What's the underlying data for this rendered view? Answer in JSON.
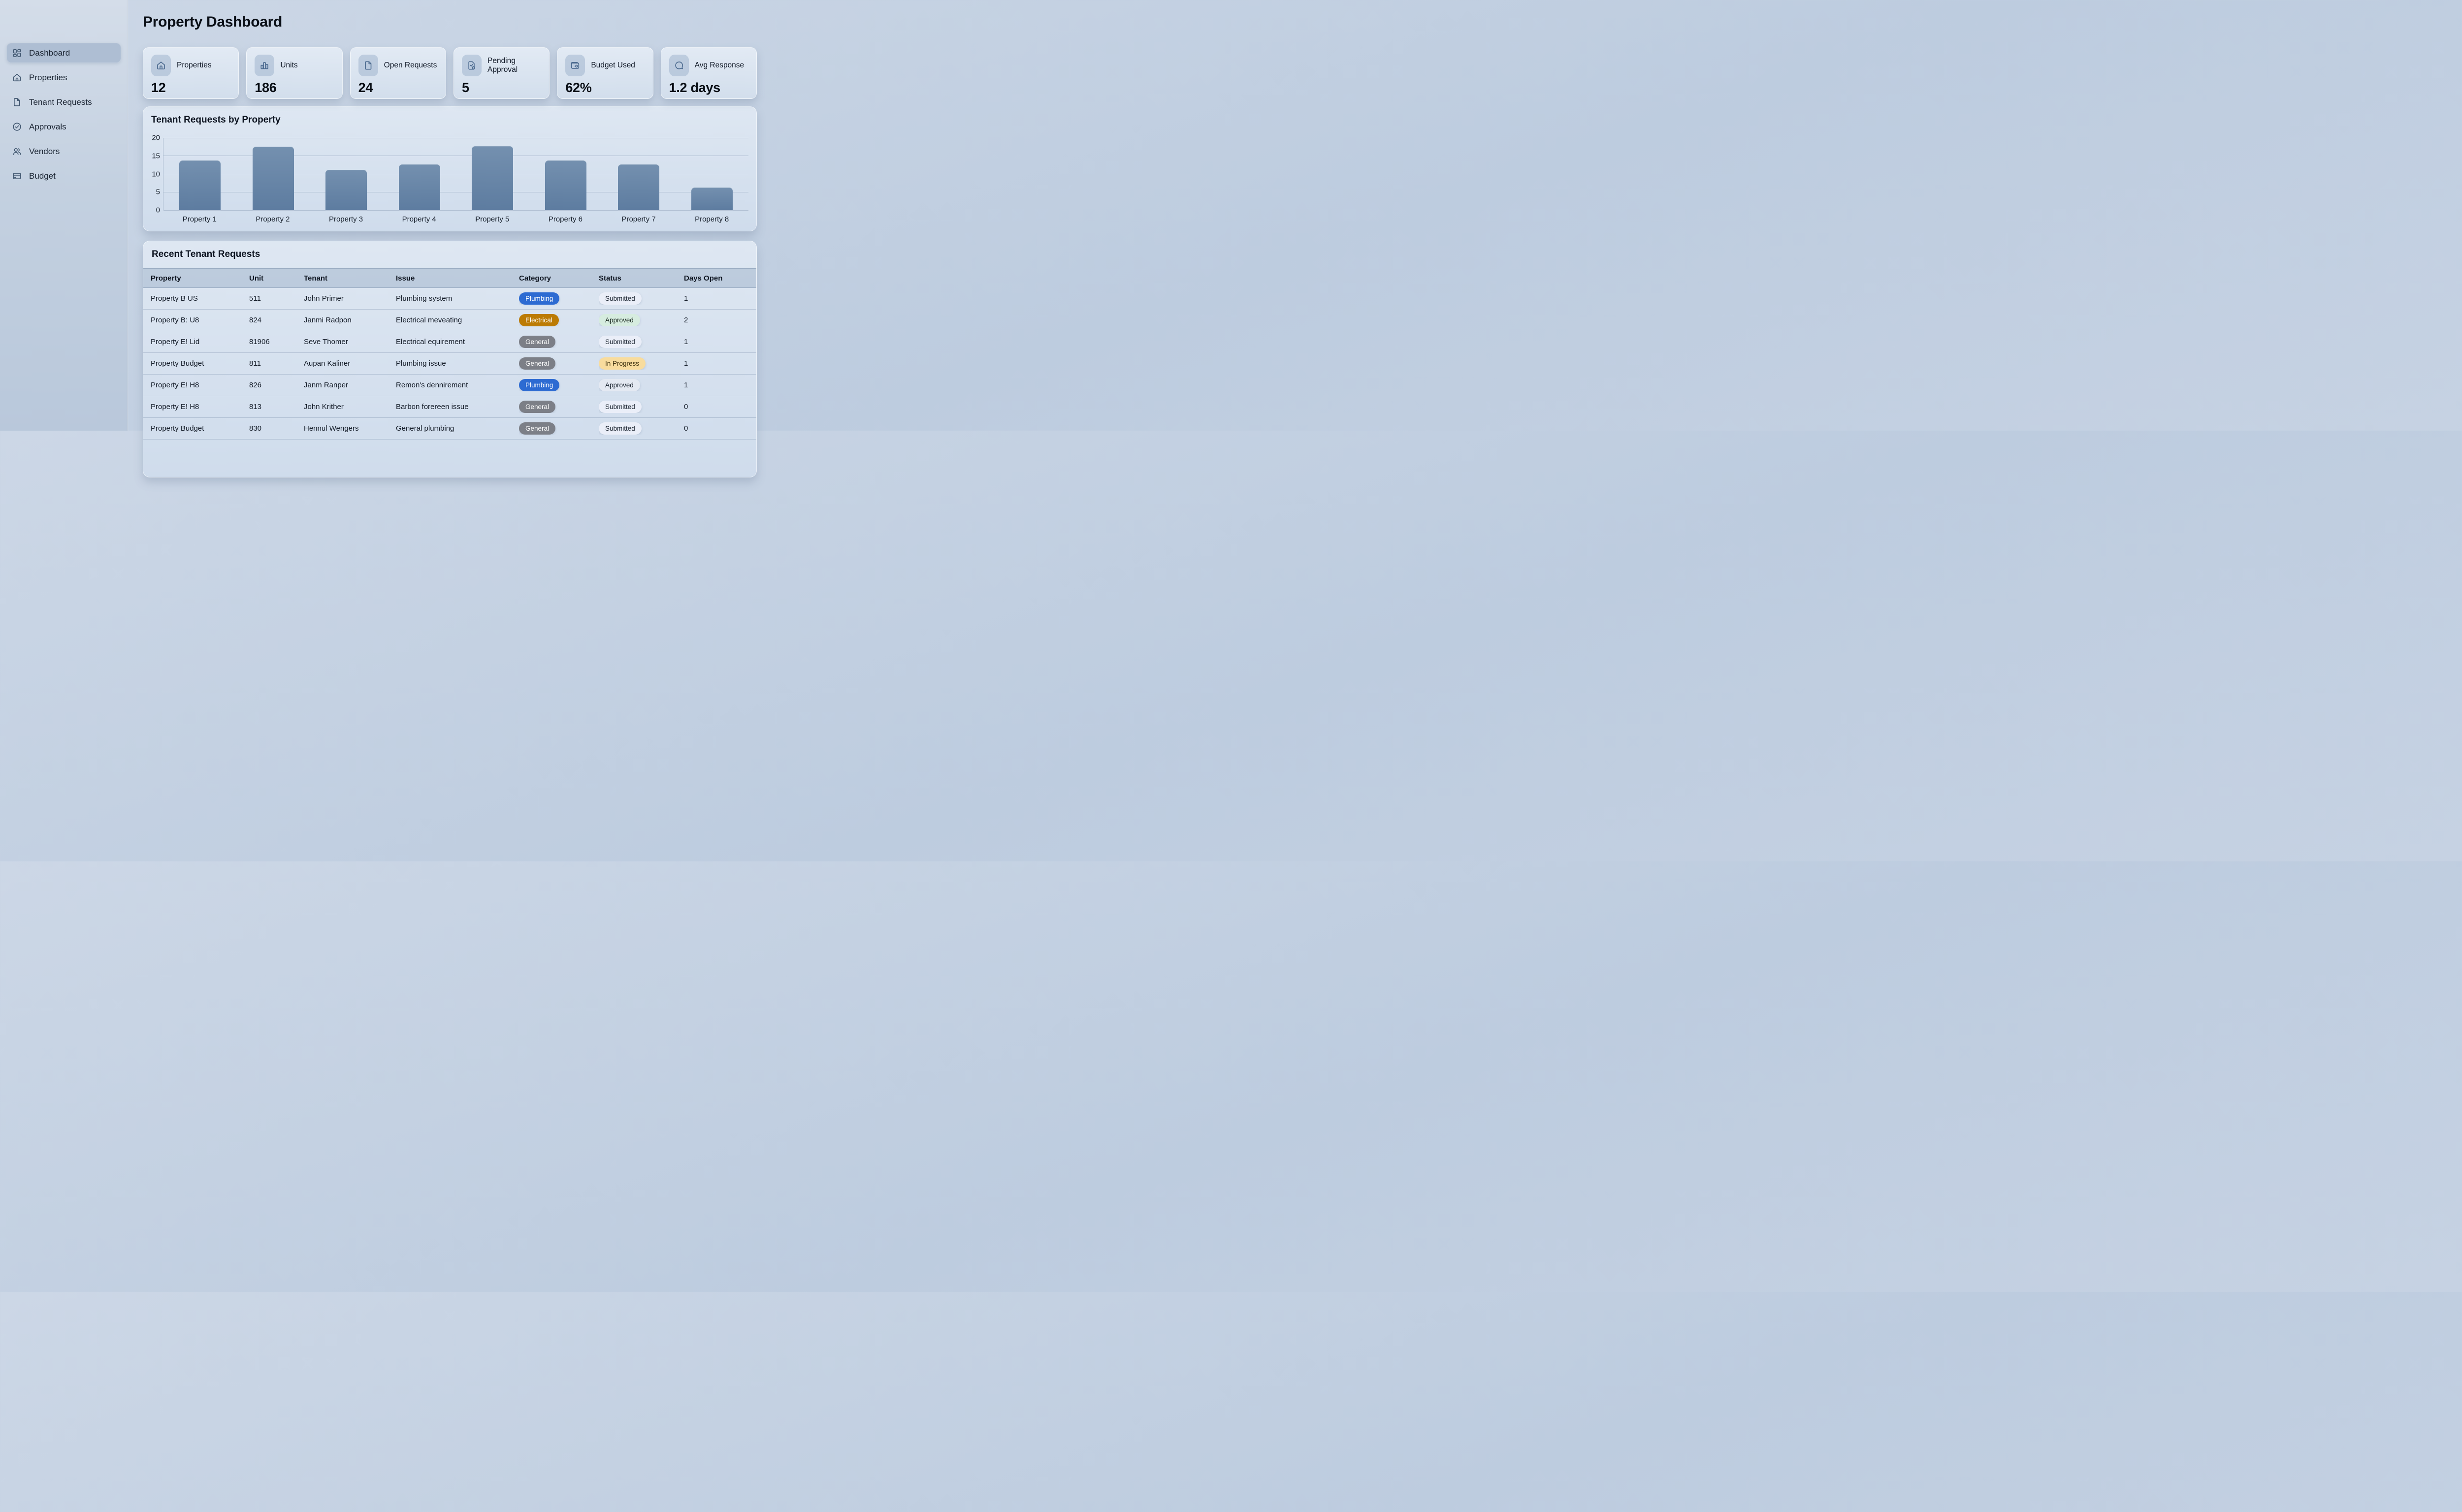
{
  "page": {
    "title": "Property Dashboard"
  },
  "sidebar": {
    "items": [
      {
        "id": "dashboard",
        "label": "Dashboard",
        "icon": "grid",
        "active": true
      },
      {
        "id": "properties",
        "label": "Properties",
        "icon": "home",
        "active": false
      },
      {
        "id": "tenant-requests",
        "label": "Tenant Requests",
        "icon": "file",
        "active": false
      },
      {
        "id": "approvals",
        "label": "Approvals",
        "icon": "check-circle",
        "active": false
      },
      {
        "id": "vendors",
        "label": "Vendors",
        "icon": "users",
        "active": false
      },
      {
        "id": "budget",
        "label": "Budget",
        "icon": "credit-card",
        "active": false
      }
    ]
  },
  "stats": [
    {
      "label": "Properties",
      "value": "12",
      "icon": "home"
    },
    {
      "label": "Units",
      "value": "186",
      "icon": "bar-chart"
    },
    {
      "label": "Open Requests",
      "value": "24",
      "icon": "file"
    },
    {
      "label": "Pending Approval",
      "value": "5",
      "icon": "file-check"
    },
    {
      "label": "Budget Used",
      "value": "62%",
      "icon": "wallet"
    },
    {
      "label": "Avg Response",
      "value": "1.2 days",
      "icon": "chat"
    }
  ],
  "chart_data": {
    "type": "bar",
    "title": "Tenant Requests by Property",
    "categories": [
      "Property 1",
      "Property 2",
      "Property 3",
      "Property 4",
      "Property 5",
      "Property 6",
      "Property 7",
      "Property 8"
    ],
    "values": [
      13.7,
      17.6,
      11.2,
      12.6,
      17.7,
      13.8,
      12.6,
      6.3
    ],
    "xlabel": "",
    "ylabel": "",
    "ylim": [
      0,
      20
    ],
    "yticks": [
      0,
      5,
      10,
      15,
      20
    ],
    "grid": true,
    "legend": "none",
    "bar_color": "#6589ac"
  },
  "table": {
    "title": "Recent Tenant Requests",
    "columns": [
      "Property",
      "Unit",
      "Tenant",
      "Issue",
      "Category",
      "Status",
      "Days Open"
    ],
    "rows": [
      {
        "property": "Property B US",
        "unit": "511",
        "tenant": "John Primer",
        "issue": "Plumbing system",
        "category": "Plumbing",
        "category_variant": "plumbing",
        "status": "Submitted",
        "status_variant": "submitted",
        "days": "1"
      },
      {
        "property": "Property B: U8",
        "unit": "824",
        "tenant": "Janmi Radpon",
        "issue": "Electrical meveating",
        "category": "Electrical",
        "category_variant": "electrical",
        "status": "Approved",
        "status_variant": "approved",
        "days": "2"
      },
      {
        "property": "Property E! Lid",
        "unit": "81906",
        "tenant": "Seve Thomer",
        "issue": "Electrical equirement",
        "category": "General",
        "category_variant": "general",
        "status": "Submitted",
        "status_variant": "submitted",
        "days": "1"
      },
      {
        "property": "Property Budget",
        "unit": "811",
        "tenant": "Aupan Kaliner",
        "issue": "Plumbing issue",
        "category": "General",
        "category_variant": "general",
        "status": "In Progress",
        "status_variant": "inprogress",
        "days": "1"
      },
      {
        "property": "Property E! H8",
        "unit": "826",
        "tenant": "Janm Ranper",
        "issue": "Remon's dennirement",
        "category": "Plumbing",
        "category_variant": "plumbing",
        "status": "Approved",
        "status_variant": "approved_light",
        "days": "1"
      },
      {
        "property": "Property E! H8",
        "unit": "813",
        "tenant": "John Krither",
        "issue": "Barbon forereen issue",
        "category": "General",
        "category_variant": "general",
        "status": "Submitted",
        "status_variant": "submitted",
        "days": "0"
      },
      {
        "property": "Property Budget",
        "unit": "830",
        "tenant": "Hennul Wengers",
        "issue": "General plumbing",
        "category": "General",
        "category_variant": "general",
        "status": "Submitted",
        "status_variant": "submitted",
        "days": "0"
      }
    ]
  },
  "colors": {
    "category_plumbing": "#2d6bd2",
    "category_electrical": "#bc7b04",
    "category_general": "#7c7f87",
    "status_submitted_bg": "#eaeef8",
    "status_approved_bg": "#d6ecdf",
    "status_in_progress_bg": "#f8dc9d",
    "bar_fill": "#6589ac",
    "page_bg": "#c3d0e2"
  }
}
